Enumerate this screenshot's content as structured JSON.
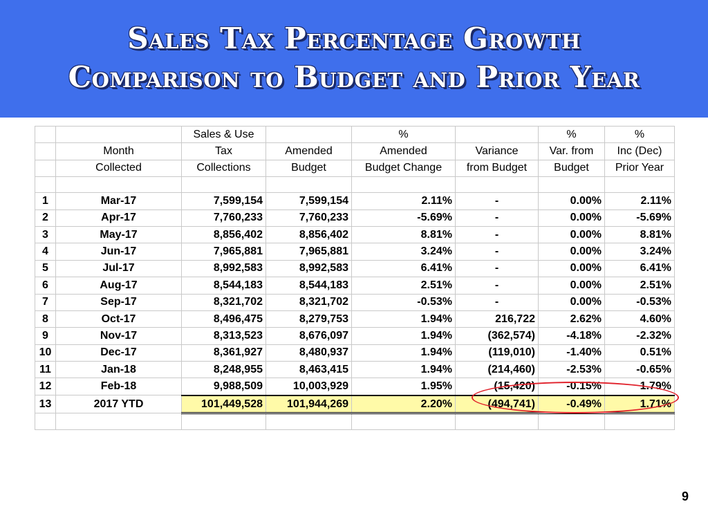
{
  "title": {
    "line1": "Sales Tax Percentage Growth",
    "line2": "Comparison to Budget and Prior Year"
  },
  "table": {
    "header": {
      "row1": [
        "",
        "",
        "Sales & Use",
        "",
        "%",
        "",
        "%",
        "%"
      ],
      "row2": [
        "",
        "Month",
        "Tax",
        "Amended",
        "Amended",
        "Variance",
        "Var. from",
        "Inc (Dec)"
      ],
      "row3": [
        "",
        "Collected",
        "Collections",
        "Budget",
        "Budget Change",
        "from Budget",
        "Budget",
        "Prior Year"
      ]
    },
    "rows": [
      {
        "idx": "1",
        "month": "Mar-17",
        "collections": "7,599,154",
        "budget": "7,599,154",
        "budget_change": "2.11%",
        "variance": "-",
        "var_pct": "0.00%",
        "prior_year": "2.11%"
      },
      {
        "idx": "2",
        "month": "Apr-17",
        "collections": "7,760,233",
        "budget": "7,760,233",
        "budget_change": "-5.69%",
        "variance": "-",
        "var_pct": "0.00%",
        "prior_year": "-5.69%"
      },
      {
        "idx": "3",
        "month": "May-17",
        "collections": "8,856,402",
        "budget": "8,856,402",
        "budget_change": "8.81%",
        "variance": "-",
        "var_pct": "0.00%",
        "prior_year": "8.81%"
      },
      {
        "idx": "4",
        "month": "Jun-17",
        "collections": "7,965,881",
        "budget": "7,965,881",
        "budget_change": "3.24%",
        "variance": "-",
        "var_pct": "0.00%",
        "prior_year": "3.24%"
      },
      {
        "idx": "5",
        "month": "Jul-17",
        "collections": "8,992,583",
        "budget": "8,992,583",
        "budget_change": "6.41%",
        "variance": "-",
        "var_pct": "0.00%",
        "prior_year": "6.41%"
      },
      {
        "idx": "6",
        "month": "Aug-17",
        "collections": "8,544,183",
        "budget": "8,544,183",
        "budget_change": "2.51%",
        "variance": "-",
        "var_pct": "0.00%",
        "prior_year": "2.51%"
      },
      {
        "idx": "7",
        "month": "Sep-17",
        "collections": "8,321,702",
        "budget": "8,321,702",
        "budget_change": "-0.53%",
        "variance": "-",
        "var_pct": "0.00%",
        "prior_year": "-0.53%"
      },
      {
        "idx": "8",
        "month": "Oct-17",
        "collections": "8,496,475",
        "budget": "8,279,753",
        "budget_change": "1.94%",
        "variance": "216,722",
        "var_pct": "2.62%",
        "prior_year": "4.60%"
      },
      {
        "idx": "9",
        "month": "Nov-17",
        "collections": "8,313,523",
        "budget": "8,676,097",
        "budget_change": "1.94%",
        "variance": "(362,574)",
        "var_pct": "-4.18%",
        "prior_year": "-2.32%"
      },
      {
        "idx": "10",
        "month": "Dec-17",
        "collections": "8,361,927",
        "budget": "8,480,937",
        "budget_change": "1.94%",
        "variance": "(119,010)",
        "var_pct": "-1.40%",
        "prior_year": "0.51%"
      },
      {
        "idx": "11",
        "month": "Jan-18",
        "collections": "8,248,955",
        "budget": "8,463,415",
        "budget_change": "1.94%",
        "variance": "(214,460)",
        "var_pct": "-2.53%",
        "prior_year": "-0.65%"
      },
      {
        "idx": "12",
        "month": "Feb-18",
        "collections": "9,988,509",
        "budget": "10,003,929",
        "budget_change": "1.95%",
        "variance": "(15,420)",
        "var_pct": "-0.15%",
        "prior_year": "1.79%"
      }
    ],
    "total": {
      "idx": "13",
      "month": "2017 YTD",
      "collections": "101,449,528",
      "budget": "101,944,269",
      "budget_change": "2.20%",
      "variance": "(494,741)",
      "var_pct": "-0.49%",
      "prior_year": "1.71%"
    }
  },
  "highlight_color": "#e0202a",
  "page_number": "9"
}
